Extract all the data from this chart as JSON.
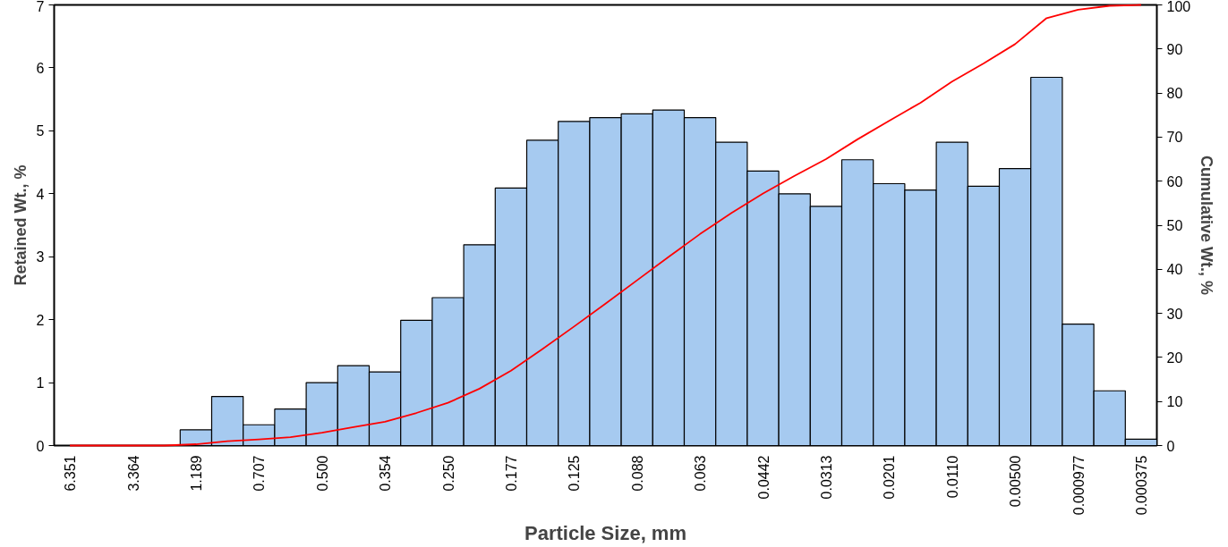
{
  "chart_data": {
    "type": "bar",
    "xlabel": "Particle Size, mm",
    "ylabel": "Retained Wt., %",
    "y2label": "Cumulative Wt., %",
    "categories": [
      "6.351",
      null,
      "3.364",
      null,
      "1.189",
      null,
      "0.707",
      null,
      "0.500",
      null,
      "0.354",
      null,
      "0.250",
      null,
      "0.177",
      null,
      "0.125",
      null,
      "0.088",
      null,
      "0.063",
      null,
      "0.0442",
      null,
      "0.0313",
      null,
      "0.0201",
      null,
      "0.0110",
      null,
      "0.00500",
      null,
      "0.000977",
      null,
      "0.000375"
    ],
    "series": [
      {
        "color": "#a6caf0",
        "values": [
          null,
          null,
          null,
          null,
          0.25,
          0.78,
          0.33,
          0.58,
          1.0,
          1.27,
          1.17,
          1.99,
          2.35,
          3.19,
          4.09,
          4.85,
          5.15,
          5.21,
          5.27,
          5.33,
          5.21,
          4.82,
          4.36,
          4.0,
          3.8,
          4.54,
          4.16,
          4.06,
          4.82,
          4.12,
          4.4,
          5.85,
          1.93,
          0.87,
          0.1
        ]
      },
      {
        "type": "line",
        "axis": "y2",
        "color": "#ff0000",
        "values": [
          0,
          0,
          0,
          0,
          0.3,
          1.0,
          1.4,
          1.9,
          2.9,
          4.2,
          5.4,
          7.4,
          9.7,
          12.9,
          17.0,
          21.9,
          27.0,
          32.2,
          37.5,
          42.8,
          48.0,
          52.8,
          57.2,
          61.2,
          65.0,
          69.5,
          73.7,
          77.8,
          82.6,
          86.7,
          91.1,
          97.0,
          98.9,
          99.8,
          100
        ]
      }
    ],
    "ylim": [
      0,
      7
    ],
    "yticks": [
      0,
      1,
      2,
      3,
      4,
      5,
      6,
      7
    ],
    "y2lim": [
      0,
      100
    ],
    "y2ticks": [
      0,
      10,
      20,
      30,
      40,
      50,
      60,
      70,
      80,
      90,
      100
    ],
    "grid": false
  }
}
